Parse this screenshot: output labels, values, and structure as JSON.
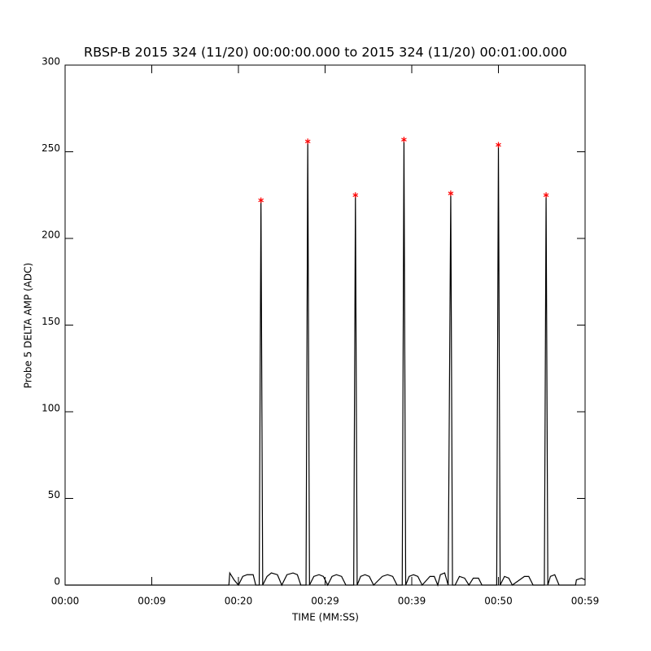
{
  "chart_data": {
    "type": "line",
    "title": "RBSP-B 2015 324 (11/20) 00:00:00.000 to 2015 324 (11/20) 00:01:00.000",
    "xlabel": "TIME (MM:SS)",
    "ylabel": "Probe 5 DELTA AMP (ADC)",
    "xlim": [
      0,
      60
    ],
    "xticks": [
      {
        "value": 0,
        "label": "00:00"
      },
      {
        "value": 10,
        "label": "00:09"
      },
      {
        "value": 20,
        "label": "00:20"
      },
      {
        "value": 30,
        "label": "00:29"
      },
      {
        "value": 40,
        "label": "00:39"
      },
      {
        "value": 50,
        "label": "00:50"
      },
      {
        "value": 60,
        "label": "00:59"
      }
    ],
    "ylim": [
      0,
      300
    ],
    "yticks": [
      0,
      50,
      100,
      150,
      200,
      250,
      300
    ],
    "series": [
      {
        "color": "#000000",
        "marker": "none",
        "x": [
          0,
          18.9,
          19.0,
          19.5,
          20.0,
          20.5,
          21.0,
          21.7,
          22.0,
          22.4,
          22.6,
          22.8,
          23.3,
          23.8,
          24.5,
          25.0,
          25.6,
          26.3,
          26.8,
          27.2,
          27.8,
          28.0,
          28.2,
          28.7,
          29.3,
          29.8,
          30.3,
          30.8,
          31.3,
          31.9,
          32.4,
          33.3,
          33.5,
          33.7,
          34.1,
          34.6,
          35.1,
          35.6,
          36.6,
          37.2,
          37.8,
          38.3,
          38.9,
          39.1,
          39.3,
          39.7,
          40.2,
          40.7,
          41.2,
          42.1,
          42.6,
          43.0,
          43.3,
          43.8,
          44.2,
          44.5,
          44.7,
          45.0,
          45.5,
          46.1,
          46.6,
          47.1,
          47.7,
          48.1,
          49.8,
          50.0,
          50.2,
          50.7,
          51.2,
          51.6,
          53.0,
          53.5,
          54.0,
          55.3,
          55.5,
          55.7,
          56.0,
          56.5,
          57.0,
          58.9,
          59.0,
          59.6,
          60
        ],
        "values": [
          0,
          0,
          7,
          3,
          0,
          5,
          6,
          6,
          0,
          0,
          222,
          0,
          5,
          7,
          6,
          0,
          6,
          7,
          6,
          0,
          0,
          256,
          0,
          5,
          6,
          5,
          0,
          5,
          6,
          5,
          0,
          0,
          225,
          0,
          5,
          6,
          5,
          0,
          5,
          6,
          5,
          0,
          0,
          257,
          0,
          5,
          6,
          5,
          0,
          5,
          5,
          0,
          6,
          7,
          0,
          226,
          0,
          0,
          5,
          4,
          0,
          4,
          4,
          0,
          0,
          254,
          0,
          5,
          4,
          0,
          5,
          5,
          0,
          0,
          225,
          0,
          5,
          6,
          0,
          0,
          3,
          4,
          3
        ]
      },
      {
        "color": "#ff0000",
        "marker": "asterisk",
        "x": [
          22.6,
          28.0,
          33.5,
          39.1,
          44.5,
          50.0,
          55.5
        ],
        "values": [
          222,
          256,
          225,
          257,
          226,
          254,
          225
        ]
      }
    ]
  }
}
